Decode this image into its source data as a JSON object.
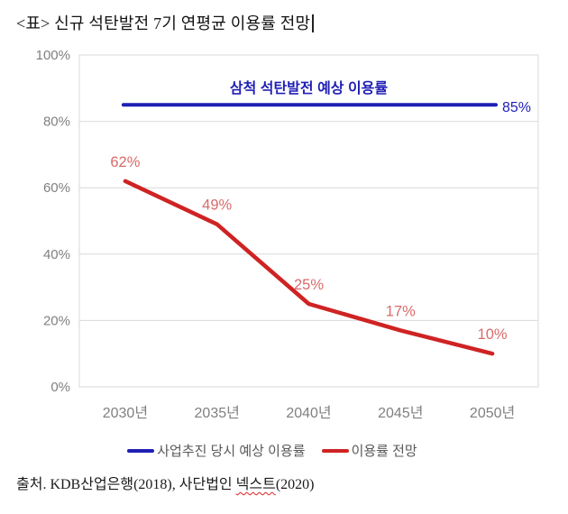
{
  "caption": "<표> 신규 석탄발전 7기 연평균 이용률 전망",
  "source": {
    "prefix": "출처. KDB산업은행(2018), 사단법인 ",
    "highlight": "넥스트",
    "suffix": "(2020)"
  },
  "chart_data": {
    "type": "line",
    "title": "<표> 신규 석탄발전 7기 연평균 이용률 전망",
    "categories": [
      "2030년",
      "2035년",
      "2040년",
      "2045년",
      "2050년"
    ],
    "series": [
      {
        "name": "사업추진 당시 예상 이용률",
        "color": "#1f1fb4",
        "values": [
          85,
          85,
          85,
          85,
          85
        ],
        "annotation": "삼척 석탄발전 예상 이용률",
        "end_label": "85%"
      },
      {
        "name": "이용률 전망",
        "color": "#cf2323",
        "label_color": "#d96a6a",
        "values": [
          62,
          49,
          25,
          17,
          10
        ],
        "data_labels": [
          "62%",
          "49%",
          "25%",
          "17%",
          "10%"
        ]
      }
    ],
    "y_ticks": [
      0,
      20,
      40,
      60,
      80,
      100
    ],
    "y_tick_labels": [
      "0%",
      "20%",
      "40%",
      "60%",
      "80%",
      "100%"
    ],
    "ylim": [
      0,
      100
    ],
    "grid": true,
    "legend_position": "bottom",
    "axis_text_color": "#808080",
    "grid_color": "#d9d9d9"
  }
}
